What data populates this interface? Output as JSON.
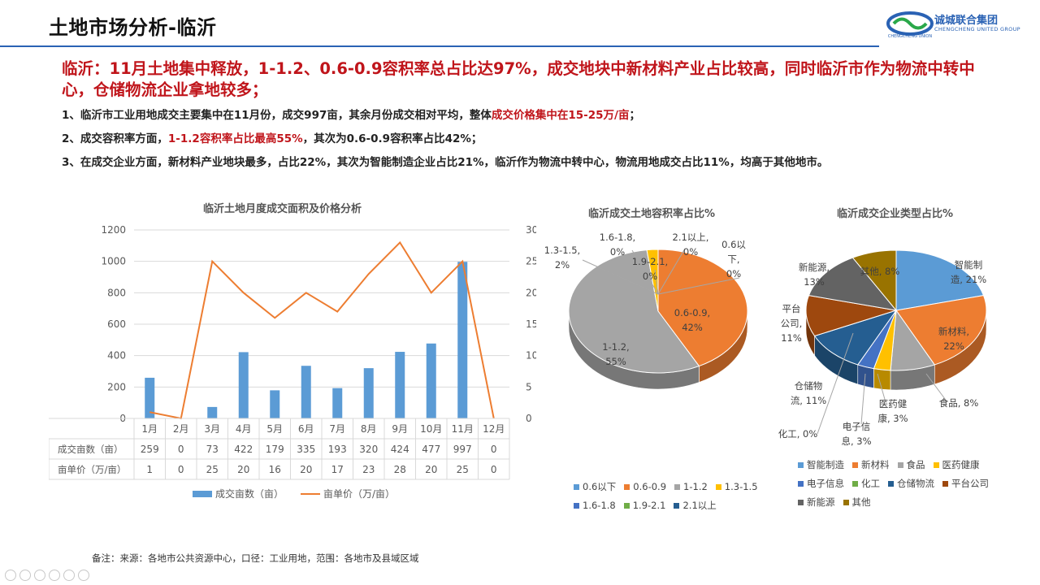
{
  "header": {
    "title": "土地市场分析-临沂",
    "logo_cn": "诚城联合集团",
    "logo_en": "CHENGCHENG UNITED GROUP",
    "logo_ring_text": "CHENGCHENG UNION"
  },
  "headline": "临沂：11月土地集中释放，1-1.2、0.6-0.9容积率总占比达97%，成交地块中新材料产业占比较高，同时临沂市作为物流中转中心，仓储物流企业拿地较多；",
  "points": [
    {
      "a": "1、临沂市工业用地成交主要集中在11月份，成交997亩，其余月份成交相对平均，整体",
      "hl": "成交价格集中在15-25万/亩",
      "b": "；"
    },
    {
      "a": "2、成交容积率方面，",
      "hl": "1-1.2容积率占比最高55%",
      "b": "，其次为0.6-0.9容积率占比42%；"
    },
    {
      "a": "3、在成交企业方面，新材料产业地块最多，占比22%，其次为智能制造企业占比21%，临沂作为物流中转中心，物流用地成交占比11%，均高于其他地市。",
      "hl": "",
      "b": ""
    }
  ],
  "chart_titles": {
    "bar": "临沂土地月度成交面积及价格分析",
    "far": "临沂成交土地容积率占比%",
    "ent": "临沂成交企业类型占比%"
  },
  "note": "备注：来源：各地市公共资源中心，口径：工业用地，范围：各地市及县域区域",
  "colors": {
    "accent_red": "#c0151b",
    "header_blue": "#2a62b4",
    "bar_blue": "#5b9bd5",
    "line_orange": "#ed7d31"
  },
  "chart_data": [
    {
      "type": "bar",
      "title": "临沂土地月度成交面积及价格分析",
      "categories": [
        "1月",
        "2月",
        "3月",
        "4月",
        "5月",
        "6月",
        "7月",
        "8月",
        "9月",
        "10月",
        "11月",
        "12月"
      ],
      "series": [
        {
          "name": "成交亩数（亩）",
          "type": "bar",
          "axis": "left",
          "color": "#5b9bd5",
          "values": [
            259,
            0,
            73,
            422,
            179,
            335,
            193,
            320,
            424,
            477,
            997,
            0
          ]
        },
        {
          "name": "亩单价（万/亩）",
          "type": "line",
          "axis": "right",
          "color": "#ed7d31",
          "values": [
            1,
            0,
            25,
            20,
            16,
            20,
            17,
            23,
            28,
            20,
            25,
            0
          ]
        }
      ],
      "ylim_left": [
        0,
        1200
      ],
      "yticks_left": [
        "0",
        "200",
        "400",
        "600",
        "800",
        "1000",
        "1200"
      ],
      "ylim_right": [
        0,
        30
      ],
      "yticks_right": [
        "0",
        "5",
        "10",
        "15",
        "20",
        "25",
        "30"
      ],
      "table_rows": [
        "成交亩数（亩）",
        "亩单价（万/亩）"
      ],
      "grid": true,
      "legend": "bottom"
    },
    {
      "type": "pie",
      "title": "临沂成交土地容积率占比%",
      "style": "3d",
      "labels": [
        "0.6以下",
        "0.6-0.9",
        "1-1.2",
        "1.3-1.5",
        "1.6-1.8",
        "1.9-2.1",
        "2.1以上"
      ],
      "values": [
        0,
        42,
        55,
        2,
        0,
        0,
        0
      ],
      "colors": [
        "#5b9bd5",
        "#ed7d31",
        "#a5a5a5",
        "#ffc000",
        "#4472c4",
        "#70ad47",
        "#255e91"
      ],
      "slice_labels": [
        [
          "0.6以",
          "下,",
          "0%"
        ],
        [
          "0.6-0.9,",
          "42%"
        ],
        [
          "1-1.2,",
          "55%"
        ],
        [
          "1.3-1.5,",
          "2%"
        ],
        [
          "1.6-1.8,",
          "0%"
        ],
        [
          "1.9-2.1,",
          "0%"
        ],
        [
          "2.1以上,",
          "0%"
        ]
      ],
      "legend": "bottom"
    },
    {
      "type": "pie",
      "title": "临沂成交企业类型占比%",
      "style": "3d",
      "labels": [
        "智能制造",
        "新材料",
        "食品",
        "医药健康",
        "电子信息",
        "化工",
        "仓储物流",
        "平台公司",
        "新能源",
        "其他"
      ],
      "values": [
        21,
        22,
        8,
        3,
        3,
        0,
        11,
        11,
        13,
        8
      ],
      "colors": [
        "#5b9bd5",
        "#ed7d31",
        "#a5a5a5",
        "#ffc000",
        "#4472c4",
        "#70ad47",
        "#255e91",
        "#9e480e",
        "#636363",
        "#997300"
      ],
      "slice_labels": [
        [
          "智能制",
          "造, 21%"
        ],
        [
          "新材料,",
          "22%"
        ],
        [
          "食品, 8%"
        ],
        [
          "医药健",
          "康, 3%"
        ],
        [
          "电子信",
          "息, 3%"
        ],
        [
          "化工, 0%"
        ],
        [
          "仓储物",
          "流, 11%"
        ],
        [
          "平台",
          "公司,",
          "11%"
        ],
        [
          "新能源,",
          "13%"
        ],
        [
          "其他, 8%"
        ]
      ],
      "legend": "bottom"
    }
  ]
}
